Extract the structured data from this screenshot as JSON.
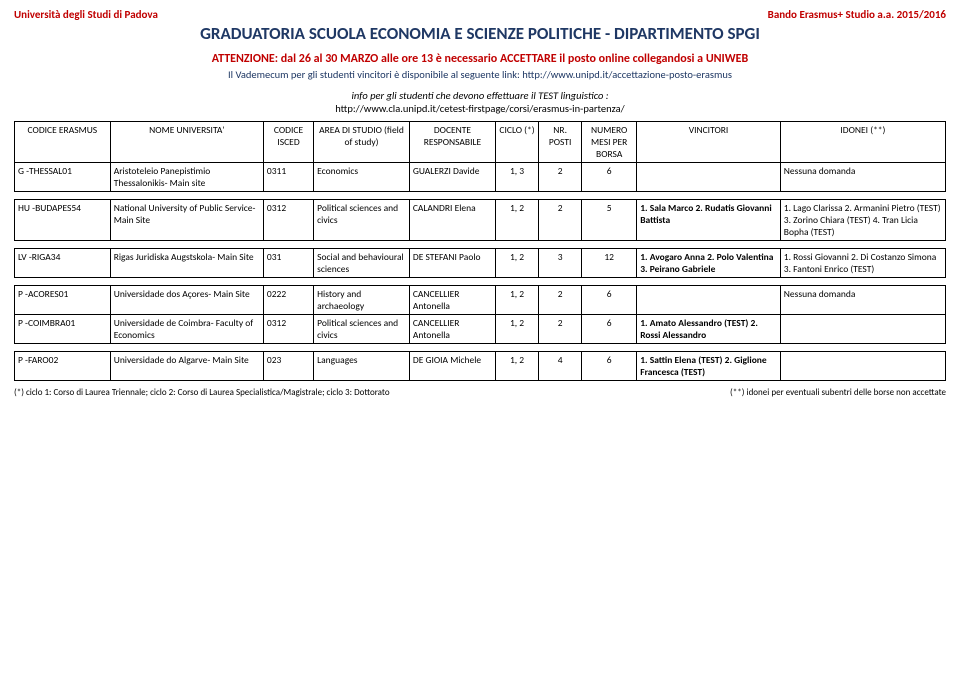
{
  "header": {
    "left": "Università degli Studi di Padova",
    "right": "Bando Erasmus+ Studio a.a. 2015/2016"
  },
  "title": "GRADUATORIA SCUOLA ECONOMIA E SCIENZE POLITICHE - DIPARTIMENTO SPGI",
  "attention": "ATTENZIONE: dal 26 al 30 MARZO alle ore 13 è necessario ACCETTARE il posto online collegandosi a UNIWEB",
  "vademecum": "Il Vademecum per gli studenti vincitori è disponibile al seguente link: http://www.unipd.it/accettazione-posto-erasmus",
  "info1": "info per gli studenti che devono effettuare il TEST linguistico :",
  "info2": "http://www.cla.unipd.it/cetest-firstpage/corsi/erasmus-in-partenza/",
  "columns": {
    "c1": "CODICE ERASMUS",
    "c2": "NOME UNIVERSITA'",
    "c3": "CODICE ISCED",
    "c4": "AREA DI STUDIO (field of study)",
    "c5": "DOCENTE RESPONSABILE",
    "c6": "CICLO (*)",
    "c7": "NR. POSTI",
    "c8": "NUMERO MESI PER BORSA",
    "c9": "VINCITORI",
    "c10": "IDONEI (**)"
  },
  "rows": [
    {
      "code": "G  -THESSAL01",
      "uni": "Aristoteleio Panepistimio Thessalonikis- Main site",
      "isced": "0311",
      "area": "Economics",
      "doc": "GUALERZI Davide",
      "ciclo": "1, 3",
      "posti": "2",
      "mesi": "6",
      "vin": "",
      "ido": "Nessuna domanda"
    },
    {
      "code": "HU -BUDAPES54",
      "uni": "National University of Public Service- Main Site",
      "isced": "0312",
      "area": "Political sciences and civics",
      "doc": "CALANDRI Elena",
      "ciclo": "1, 2",
      "posti": "2",
      "mesi": "5",
      "vin": "1. Sala Marco 2. Rudatis Giovanni Battista",
      "ido": "1. Lago Clarissa 2. Armanini Pietro (TEST) 3. Zorino Chiara (TEST) 4. Tran Licia Bopha (TEST)"
    },
    {
      "code": "LV -RIGA34",
      "uni": "Rigas Juridiska Augstskola- Main Site",
      "isced": "031",
      "area": "Social and behavioural sciences",
      "doc": "DE STEFANI Paolo",
      "ciclo": "1, 2",
      "posti": "3",
      "mesi": "12",
      "vin": "1. Avogaro Anna 2. Polo Valentina 3. Peirano Gabriele",
      "ido": "1. Rossi Giovanni 2. Di Costanzo Simona 3. Fantoni Enrico (TEST)"
    },
    {
      "code": "P  -ACORES01",
      "uni": "Universidade dos Açores- Main Site",
      "isced": "0222",
      "area": "History and archaeology",
      "doc": "CANCELLIER Antonella",
      "ciclo": "1, 2",
      "posti": "2",
      "mesi": "6",
      "vin": "",
      "ido": "Nessuna domanda"
    },
    {
      "code": "P  -COIMBRA01",
      "uni": "Universidade de Coimbra- Faculty of Economics",
      "isced": "0312",
      "area": "Political sciences and civics",
      "doc": "CANCELLIER Antonella",
      "ciclo": "1, 2",
      "posti": "2",
      "mesi": "6",
      "vin": "1. Amato Alessandro (TEST) 2. Rossi Alessandro",
      "ido": ""
    },
    {
      "code": "P  -FARO02",
      "uni": "Universidade do Algarve- Main Site",
      "isced": "023",
      "area": "Languages",
      "doc": "DE GIOIA Michele",
      "ciclo": "1, 2",
      "posti": "4",
      "mesi": "6",
      "vin": "1. Sattin Elena (TEST) 2. Giglione Francesca (TEST)",
      "ido": ""
    }
  ],
  "footer": {
    "left": "(*) ciclo 1: Corso di Laurea Triennale; ciclo 2: Corso di Laurea Specialistica/Magistrale; ciclo 3: Dottorato",
    "right": "(**) idonei per eventuali subentri delle borse non accettate"
  },
  "gaps_after": [
    0,
    1,
    2,
    4
  ]
}
